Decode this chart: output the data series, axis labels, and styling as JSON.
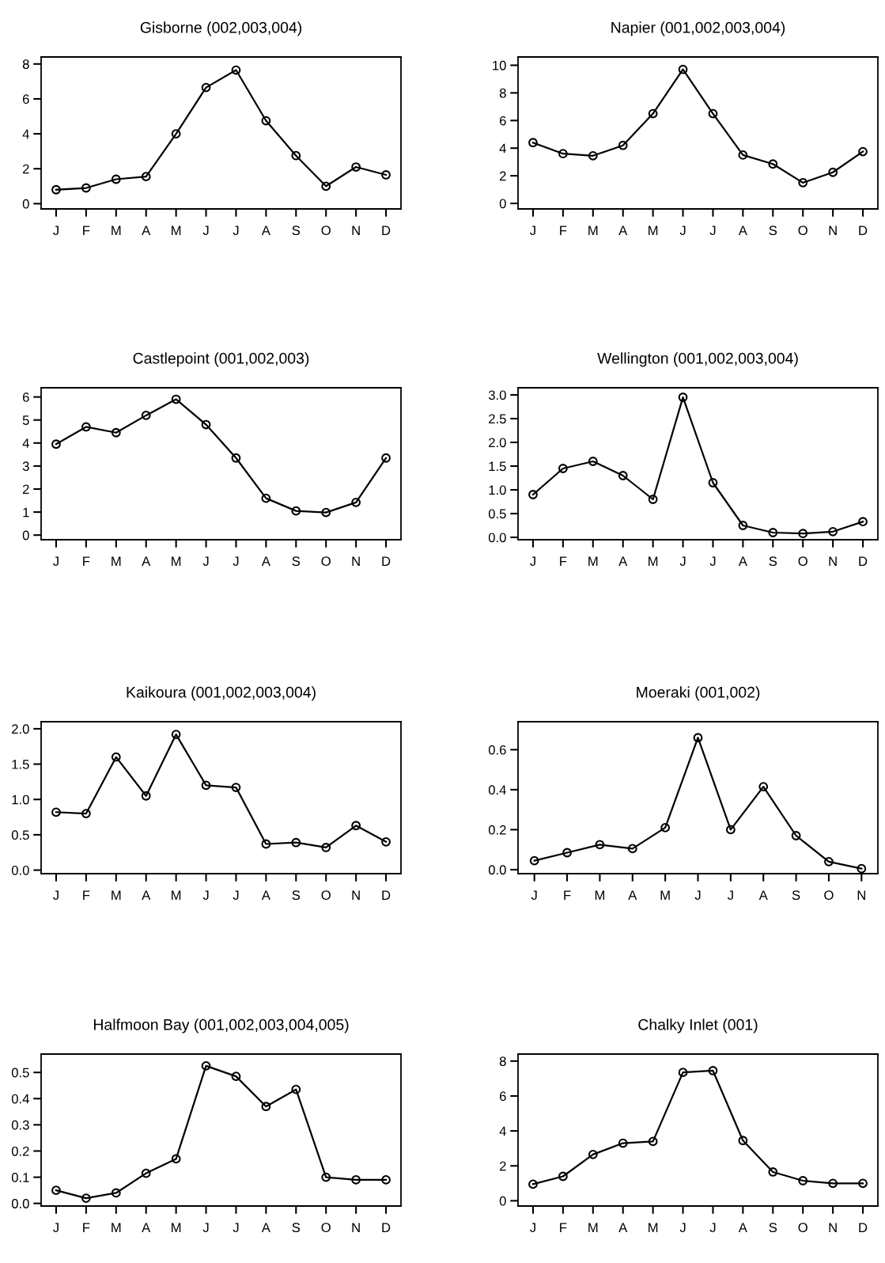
{
  "chart_data": [
    {
      "type": "line",
      "title": "Gisborne (002,003,004)",
      "categories": [
        "J",
        "F",
        "M",
        "A",
        "M",
        "J",
        "J",
        "A",
        "S",
        "O",
        "N",
        "D"
      ],
      "values": [
        0.8,
        0.9,
        1.4,
        1.55,
        4.0,
        6.65,
        7.65,
        4.75,
        2.75,
        1.0,
        2.1,
        1.65
      ],
      "color": "#000000",
      "marker": "circle",
      "ylim": [
        -0.3,
        8.4
      ],
      "yticks": [
        0,
        2,
        4,
        6,
        8
      ],
      "grid": false
    },
    {
      "type": "line",
      "title": "Napier (001,002,003,004)",
      "categories": [
        "J",
        "F",
        "M",
        "A",
        "M",
        "J",
        "J",
        "A",
        "S",
        "O",
        "N",
        "D"
      ],
      "values": [
        4.4,
        3.6,
        3.45,
        4.2,
        6.5,
        9.7,
        6.5,
        3.5,
        2.85,
        1.5,
        2.25,
        3.75
      ],
      "color": "#000000",
      "marker": "circle",
      "ylim": [
        -0.4,
        10.6
      ],
      "yticks": [
        0,
        2,
        4,
        6,
        8,
        10
      ],
      "grid": false
    },
    {
      "type": "line",
      "title": "Castlepoint (001,002,003)",
      "categories": [
        "J",
        "F",
        "M",
        "A",
        "M",
        "J",
        "J",
        "A",
        "S",
        "O",
        "N",
        "D"
      ],
      "values": [
        3.95,
        4.7,
        4.45,
        5.2,
        5.9,
        4.8,
        3.35,
        1.6,
        1.05,
        0.98,
        1.42,
        3.35
      ],
      "color": "#000000",
      "marker": "circle",
      "ylim": [
        -0.2,
        6.4
      ],
      "yticks": [
        0,
        1,
        2,
        3,
        4,
        5,
        6
      ],
      "grid": false
    },
    {
      "type": "line",
      "title": "Wellington (001,002,003,004)",
      "categories": [
        "J",
        "F",
        "M",
        "A",
        "M",
        "J",
        "J",
        "A",
        "S",
        "O",
        "N",
        "D"
      ],
      "values": [
        0.9,
        1.45,
        1.6,
        1.3,
        0.8,
        2.95,
        1.15,
        0.25,
        0.1,
        0.08,
        0.12,
        0.33
      ],
      "color": "#000000",
      "marker": "circle",
      "ylim": [
        -0.05,
        3.15
      ],
      "yticks": [
        {
          "value": 0,
          "label": "0.0"
        },
        {
          "value": 0.5,
          "label": "0.5"
        },
        {
          "value": 1,
          "label": "1.0"
        },
        {
          "value": 1.5,
          "label": "1.5"
        },
        {
          "value": 2,
          "label": "2.0"
        },
        {
          "value": 2.5,
          "label": "2.5"
        },
        {
          "value": 3,
          "label": "3.0"
        }
      ],
      "grid": false
    },
    {
      "type": "line",
      "title": "Kaikoura (001,002,003,004)",
      "categories": [
        "J",
        "F",
        "M",
        "A",
        "M",
        "J",
        "J",
        "A",
        "S",
        "O",
        "N",
        "D"
      ],
      "values": [
        0.82,
        0.8,
        1.6,
        1.05,
        1.92,
        1.2,
        1.17,
        0.37,
        0.39,
        0.32,
        0.63,
        0.4
      ],
      "color": "#000000",
      "marker": "circle",
      "ylim": [
        -0.05,
        2.1
      ],
      "yticks": [
        {
          "value": 0,
          "label": "0.0"
        },
        {
          "value": 0.5,
          "label": "0.5"
        },
        {
          "value": 1,
          "label": "1.0"
        },
        {
          "value": 1.5,
          "label": "1.5"
        },
        {
          "value": 2,
          "label": "2.0"
        }
      ],
      "grid": false
    },
    {
      "type": "line",
      "title": "Moeraki (001,002)",
      "categories": [
        "J",
        "F",
        "M",
        "A",
        "M",
        "J",
        "J",
        "A",
        "S",
        "O",
        "N"
      ],
      "values": [
        0.045,
        0.085,
        0.125,
        0.105,
        0.21,
        0.66,
        0.2,
        0.415,
        0.17,
        0.04,
        0.005
      ],
      "color": "#000000",
      "marker": "circle",
      "ylim": [
        -0.02,
        0.74
      ],
      "yticks": [
        {
          "value": 0,
          "label": "0.0"
        },
        {
          "value": 0.2,
          "label": "0.2"
        },
        {
          "value": 0.4,
          "label": "0.4"
        },
        {
          "value": 0.6,
          "label": "0.6"
        }
      ],
      "grid": false
    },
    {
      "type": "line",
      "title": "Halfmoon Bay (001,002,003,004,005)",
      "categories": [
        "J",
        "F",
        "M",
        "A",
        "M",
        "J",
        "J",
        "A",
        "S",
        "O",
        "N",
        "D"
      ],
      "values": [
        0.05,
        0.02,
        0.04,
        0.115,
        0.17,
        0.525,
        0.485,
        0.37,
        0.435,
        0.1,
        0.09,
        0.09
      ],
      "color": "#000000",
      "marker": "circle",
      "ylim": [
        -0.01,
        0.57
      ],
      "yticks": [
        {
          "value": 0,
          "label": "0.0"
        },
        {
          "value": 0.1,
          "label": "0.1"
        },
        {
          "value": 0.2,
          "label": "0.2"
        },
        {
          "value": 0.3,
          "label": "0.3"
        },
        {
          "value": 0.4,
          "label": "0.4"
        },
        {
          "value": 0.5,
          "label": "0.5"
        }
      ],
      "grid": false
    },
    {
      "type": "line",
      "title": "Chalky Inlet (001)",
      "categories": [
        "J",
        "F",
        "M",
        "A",
        "M",
        "J",
        "J",
        "A",
        "S",
        "O",
        "N",
        "D"
      ],
      "values": [
        0.95,
        1.4,
        2.65,
        3.3,
        3.4,
        7.35,
        7.45,
        3.45,
        1.65,
        1.15,
        1.0,
        1.0
      ],
      "color": "#000000",
      "marker": "circle",
      "ylim": [
        -0.3,
        8.4
      ],
      "yticks": [
        0,
        2,
        4,
        6,
        8
      ],
      "grid": false
    }
  ]
}
